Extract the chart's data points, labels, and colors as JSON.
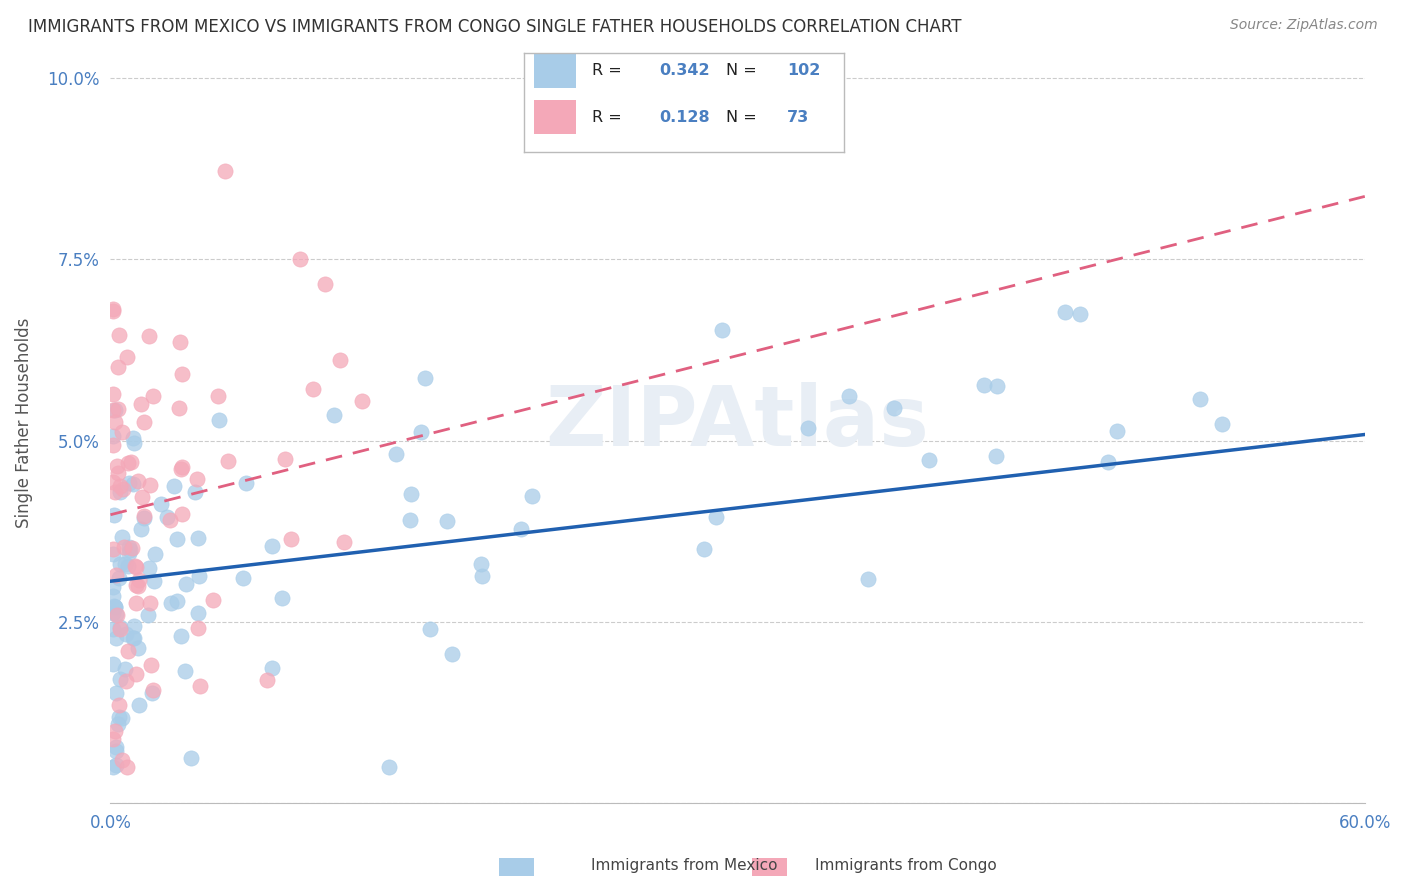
{
  "title": "IMMIGRANTS FROM MEXICO VS IMMIGRANTS FROM CONGO SINGLE FATHER HOUSEHOLDS CORRELATION CHART",
  "source": "Source: ZipAtlas.com",
  "ylabel": "Single Father Households",
  "xlim": [
    0,
    0.6
  ],
  "ylim": [
    0,
    0.105
  ],
  "mexico_R": 0.342,
  "mexico_N": 102,
  "congo_R": 0.128,
  "congo_N": 73,
  "mexico_color": "#a8cce8",
  "congo_color": "#f4a8b8",
  "mexico_line_color": "#2060b0",
  "congo_line_color": "#e06080",
  "background_color": "#ffffff",
  "grid_color": "#cccccc",
  "title_color": "#333333",
  "source_color": "#888888",
  "tick_color": "#4a7fc1",
  "label_color": "#555555",
  "watermark_color": "#e8eef5",
  "watermark_text": "ZIPAtlas"
}
